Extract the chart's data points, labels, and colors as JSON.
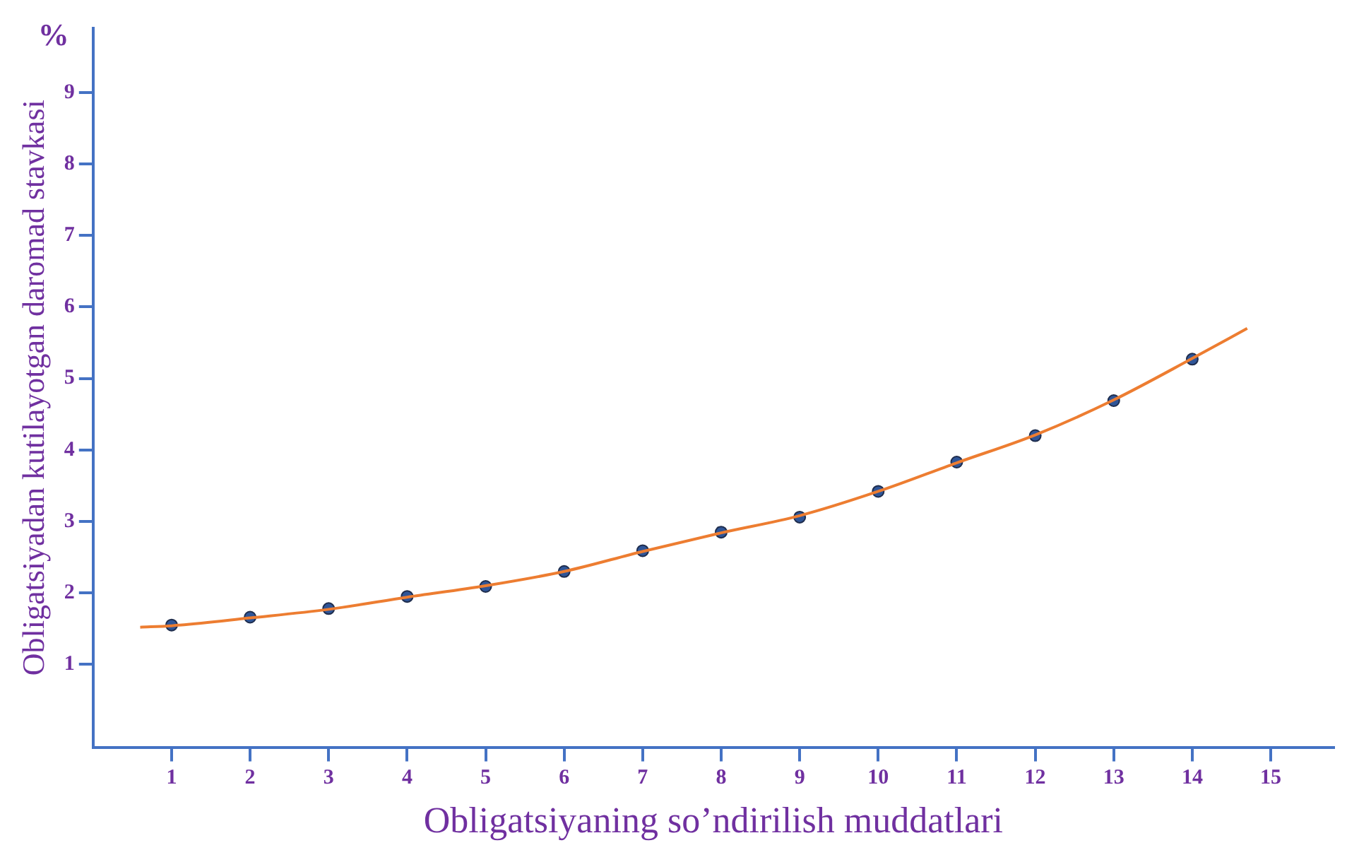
{
  "chart_data": {
    "type": "scatter",
    "xlabel": "Obligatsiyaning so’ndirilish muddatlari",
    "ylabel": "Obligatsiyadan kutilayotgan daromad stavkasi",
    "annotations": [
      "%"
    ],
    "series": [
      {
        "type": "line",
        "color": "#ed7d31",
        "marker": "none",
        "x": [
          0.6,
          1,
          2,
          3,
          4,
          5,
          6,
          7,
          8,
          9,
          10,
          11,
          12,
          13,
          14,
          14.7
        ],
        "values": [
          1.52,
          1.54,
          1.65,
          1.77,
          1.94,
          2.1,
          2.3,
          2.58,
          2.84,
          3.08,
          3.42,
          3.82,
          4.21,
          4.7,
          5.28,
          5.7
        ]
      },
      {
        "color": "#2f5597",
        "marker": "circle",
        "x": [
          1,
          2,
          3,
          4,
          5,
          6,
          7,
          8,
          9,
          10,
          11,
          12,
          13,
          14
        ],
        "values": [
          1.55,
          1.66,
          1.78,
          1.95,
          2.09,
          2.3,
          2.59,
          2.85,
          3.06,
          3.42,
          3.83,
          4.2,
          4.69,
          5.27
        ]
      }
    ],
    "xlim": [
      0,
      15.8
    ],
    "xticks": [
      1,
      2,
      3,
      4,
      5,
      6,
      7,
      8,
      9,
      10,
      11,
      12,
      13,
      14,
      15
    ],
    "ylim": [
      -0.16,
      9.9
    ],
    "yticks": [
      1,
      2,
      3,
      4,
      5,
      6,
      7,
      8,
      9
    ],
    "grid": false,
    "legend": false
  }
}
